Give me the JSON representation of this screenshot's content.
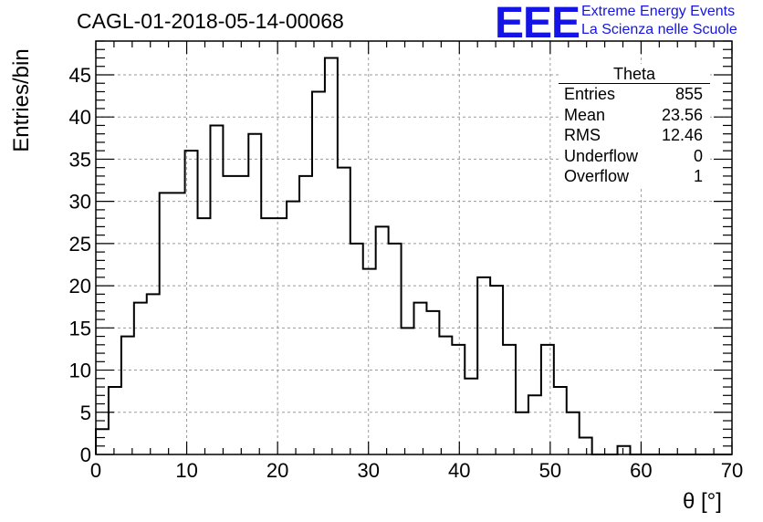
{
  "title": "CAGL-01-2018-05-14-00068",
  "logo": {
    "mark": "EEE",
    "line1": "Extreme Energy Events",
    "line2": "La Scienza nelle Scuole",
    "color": "#1414e6"
  },
  "stats_box": {
    "title": "Theta",
    "rows": [
      {
        "label": "Entries",
        "value": "855"
      },
      {
        "label": "Mean",
        "value": "23.56"
      },
      {
        "label": "RMS",
        "value": "12.46"
      },
      {
        "label": "Underflow",
        "value": "0"
      },
      {
        "label": "Overflow",
        "value": "1"
      }
    ]
  },
  "chart_data": {
    "type": "bar",
    "style": "step-histogram",
    "title": "CAGL-01-2018-05-14-00068",
    "xlabel": "θ [°]",
    "ylabel": "Entries/bin",
    "xlim": [
      0,
      70
    ],
    "ylim": [
      0,
      49
    ],
    "bin_width": 1.4,
    "bin_edges_start": 0,
    "values": [
      3,
      8,
      14,
      18,
      19,
      31,
      31,
      36,
      28,
      39,
      33,
      33,
      38,
      28,
      28,
      30,
      33,
      43,
      47,
      34,
      25,
      22,
      27,
      25,
      15,
      18,
      17,
      14,
      13,
      9,
      21,
      20,
      13,
      5,
      7,
      13,
      8,
      5,
      2,
      0,
      0,
      1,
      0,
      0,
      0,
      0,
      0,
      0,
      0,
      0
    ],
    "xticks": [
      0,
      10,
      20,
      30,
      40,
      50,
      60,
      70
    ],
    "yticks": [
      0,
      5,
      10,
      15,
      20,
      25,
      30,
      35,
      40,
      45
    ],
    "grid": true,
    "line_color": "#000000"
  }
}
